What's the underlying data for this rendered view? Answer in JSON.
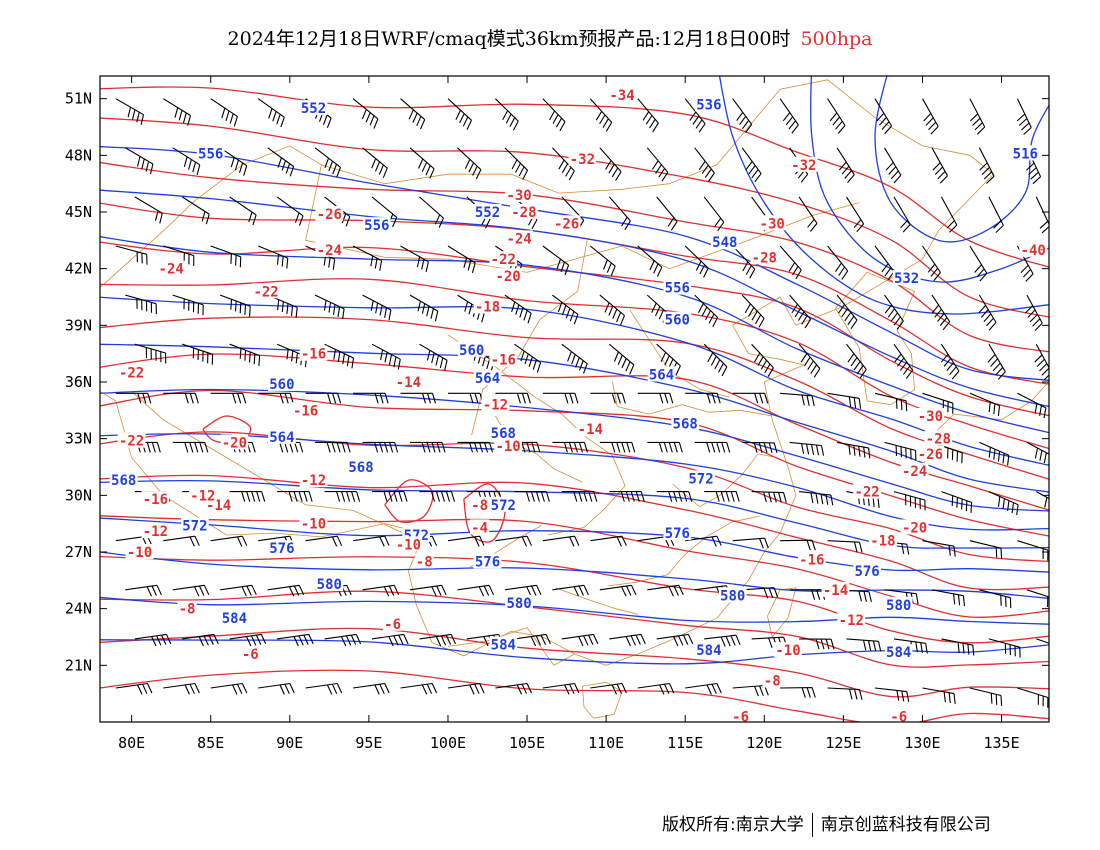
{
  "title": {
    "main": "2024年12月18日WRF/cmaq模式36km预报产品:12月18日00时",
    "level": "500hpa"
  },
  "axes": {
    "lat_labels": [
      "51N",
      "48N",
      "45N",
      "42N",
      "39N",
      "36N",
      "33N",
      "30N",
      "27N",
      "24N",
      "21N"
    ],
    "lat_values": [
      51,
      48,
      45,
      42,
      39,
      36,
      33,
      30,
      27,
      24,
      21
    ],
    "lon_labels": [
      "80E",
      "85E",
      "90E",
      "95E",
      "100E",
      "105E",
      "110E",
      "115E",
      "120E",
      "125E",
      "130E",
      "135E"
    ],
    "lon_values": [
      80,
      85,
      90,
      95,
      100,
      105,
      110,
      115,
      120,
      125,
      130,
      135
    ],
    "lon_range": [
      78,
      138
    ],
    "lat_range": [
      18,
      52.2
    ]
  },
  "colors": {
    "height_contours": "#1f3fe0",
    "temperature_contours": "#e23030",
    "boundaries": "#d98c3a",
    "wind_barbs": "#000000",
    "level_text": "#e23030"
  },
  "height_labels": [
    {
      "text": "552",
      "lon": 91.5,
      "lat": 50.5
    },
    {
      "text": "556",
      "lon": 85.0,
      "lat": 48.1
    },
    {
      "text": "536",
      "lon": 116.5,
      "lat": 50.7
    },
    {
      "text": "516",
      "lon": 136.5,
      "lat": 48.1
    },
    {
      "text": "556",
      "lon": 95.5,
      "lat": 44.3
    },
    {
      "text": "552",
      "lon": 102.5,
      "lat": 45.0
    },
    {
      "text": "548",
      "lon": 117.5,
      "lat": 43.4
    },
    {
      "text": "532",
      "lon": 129.0,
      "lat": 41.5
    },
    {
      "text": "556",
      "lon": 114.5,
      "lat": 41.0
    },
    {
      "text": "560",
      "lon": 114.5,
      "lat": 39.3
    },
    {
      "text": "560",
      "lon": 101.5,
      "lat": 37.7
    },
    {
      "text": "564",
      "lon": 113.5,
      "lat": 36.4
    },
    {
      "text": "560",
      "lon": 89.5,
      "lat": 35.9
    },
    {
      "text": "564",
      "lon": 102.5,
      "lat": 36.2
    },
    {
      "text": "564",
      "lon": 89.5,
      "lat": 33.1
    },
    {
      "text": "568",
      "lon": 103.5,
      "lat": 33.3
    },
    {
      "text": "568",
      "lon": 115.0,
      "lat": 33.8
    },
    {
      "text": "568",
      "lon": 94.5,
      "lat": 31.5
    },
    {
      "text": "572",
      "lon": 116.0,
      "lat": 30.9
    },
    {
      "text": "568",
      "lon": 79.5,
      "lat": 30.8
    },
    {
      "text": "572",
      "lon": 84.0,
      "lat": 28.4
    },
    {
      "text": "572",
      "lon": 98.0,
      "lat": 27.9
    },
    {
      "text": "572",
      "lon": 103.5,
      "lat": 29.5
    },
    {
      "text": "576",
      "lon": 89.5,
      "lat": 27.2
    },
    {
      "text": "576",
      "lon": 102.5,
      "lat": 26.5
    },
    {
      "text": "576",
      "lon": 114.5,
      "lat": 28.0
    },
    {
      "text": "576",
      "lon": 126.5,
      "lat": 26.0
    },
    {
      "text": "580",
      "lon": 92.5,
      "lat": 25.3
    },
    {
      "text": "580",
      "lon": 104.5,
      "lat": 24.3
    },
    {
      "text": "580",
      "lon": 118.0,
      "lat": 24.7
    },
    {
      "text": "580",
      "lon": 128.5,
      "lat": 24.2
    },
    {
      "text": "584",
      "lon": 86.5,
      "lat": 23.5
    },
    {
      "text": "584",
      "lon": 103.5,
      "lat": 22.1
    },
    {
      "text": "584",
      "lon": 116.5,
      "lat": 21.8
    },
    {
      "text": "584",
      "lon": 128.5,
      "lat": 21.7
    }
  ],
  "temp_labels": [
    {
      "text": "-34",
      "lon": 111.0,
      "lat": 51.2
    },
    {
      "text": "-32",
      "lon": 108.5,
      "lat": 47.8
    },
    {
      "text": "-32",
      "lon": 122.5,
      "lat": 47.5
    },
    {
      "text": "-30",
      "lon": 104.5,
      "lat": 45.9
    },
    {
      "text": "-28",
      "lon": 104.8,
      "lat": 45.0
    },
    {
      "text": "-26",
      "lon": 92.5,
      "lat": 44.9
    },
    {
      "text": "-26",
      "lon": 107.5,
      "lat": 44.4
    },
    {
      "text": "-30",
      "lon": 120.5,
      "lat": 44.4
    },
    {
      "text": "-24",
      "lon": 104.5,
      "lat": 43.6
    },
    {
      "text": "-24",
      "lon": 92.5,
      "lat": 43.0
    },
    {
      "text": "-28",
      "lon": 120.0,
      "lat": 42.6
    },
    {
      "text": "-40",
      "lon": 137.0,
      "lat": 43.0
    },
    {
      "text": "-24",
      "lon": 82.5,
      "lat": 42.0
    },
    {
      "text": "-22",
      "lon": 103.5,
      "lat": 42.5
    },
    {
      "text": "-20",
      "lon": 103.8,
      "lat": 41.6
    },
    {
      "text": "-22",
      "lon": 88.5,
      "lat": 40.8
    },
    {
      "text": "-18",
      "lon": 102.5,
      "lat": 40.0
    },
    {
      "text": "-16",
      "lon": 91.5,
      "lat": 37.5
    },
    {
      "text": "-16",
      "lon": 103.5,
      "lat": 37.2
    },
    {
      "text": "-22",
      "lon": 80.0,
      "lat": 36.5
    },
    {
      "text": "-14",
      "lon": 97.5,
      "lat": 36.0
    },
    {
      "text": "-16",
      "lon": 91.0,
      "lat": 34.5
    },
    {
      "text": "-12",
      "lon": 103.0,
      "lat": 34.8
    },
    {
      "text": "-14",
      "lon": 109.0,
      "lat": 33.5
    },
    {
      "text": "-22",
      "lon": 80.0,
      "lat": 32.9
    },
    {
      "text": "-20",
      "lon": 86.5,
      "lat": 32.8
    },
    {
      "text": "-10",
      "lon": 103.8,
      "lat": 32.6
    },
    {
      "text": "-30",
      "lon": 130.5,
      "lat": 34.2
    },
    {
      "text": "-28",
      "lon": 131.0,
      "lat": 33.0
    },
    {
      "text": "-26",
      "lon": 130.5,
      "lat": 32.2
    },
    {
      "text": "-24",
      "lon": 129.5,
      "lat": 31.3
    },
    {
      "text": "-22",
      "lon": 126.5,
      "lat": 30.2
    },
    {
      "text": "-16",
      "lon": 81.5,
      "lat": 29.8
    },
    {
      "text": "-14",
      "lon": 85.5,
      "lat": 29.5
    },
    {
      "text": "-12",
      "lon": 84.5,
      "lat": 30.0
    },
    {
      "text": "-12",
      "lon": 91.5,
      "lat": 30.8
    },
    {
      "text": "-8",
      "lon": 102.0,
      "lat": 29.5
    },
    {
      "text": "-10",
      "lon": 91.5,
      "lat": 28.5
    },
    {
      "text": "-4",
      "lon": 102.0,
      "lat": 28.3
    },
    {
      "text": "-12",
      "lon": 81.5,
      "lat": 28.1
    },
    {
      "text": "-10",
      "lon": 97.5,
      "lat": 27.4
    },
    {
      "text": "-10",
      "lon": 80.5,
      "lat": 27.0
    },
    {
      "text": "-8",
      "lon": 98.5,
      "lat": 26.5
    },
    {
      "text": "-20",
      "lon": 129.5,
      "lat": 28.3
    },
    {
      "text": "-18",
      "lon": 127.5,
      "lat": 27.6
    },
    {
      "text": "-16",
      "lon": 123.0,
      "lat": 26.6
    },
    {
      "text": "-14",
      "lon": 124.5,
      "lat": 25.0
    },
    {
      "text": "-8",
      "lon": 83.5,
      "lat": 24.0
    },
    {
      "text": "-6",
      "lon": 96.5,
      "lat": 23.2
    },
    {
      "text": "-12",
      "lon": 125.5,
      "lat": 23.4
    },
    {
      "text": "-6",
      "lon": 87.5,
      "lat": 21.6
    },
    {
      "text": "-10",
      "lon": 121.5,
      "lat": 21.8
    },
    {
      "text": "-8",
      "lon": 120.5,
      "lat": 20.2
    },
    {
      "text": "-6",
      "lon": 118.5,
      "lat": 18.3
    },
    {
      "text": "-6",
      "lon": 128.5,
      "lat": 18.3
    }
  ],
  "footer": {
    "copyright": "版权所有:南京大学",
    "company": "南京创蓝科技有限公司"
  }
}
